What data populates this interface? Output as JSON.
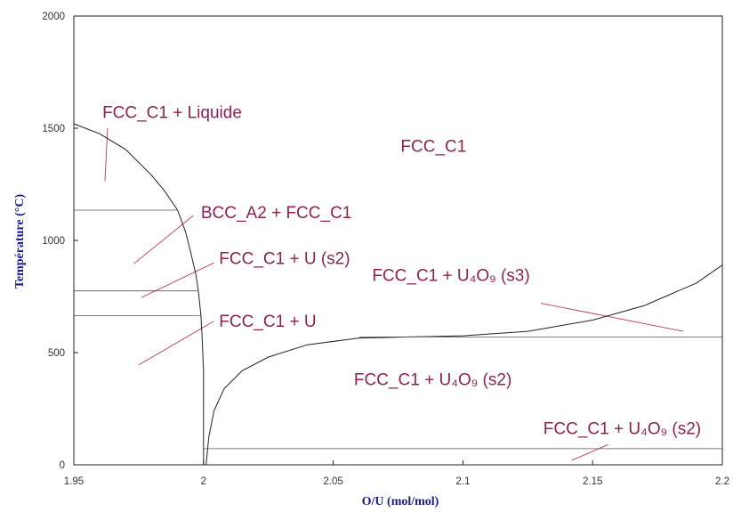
{
  "chart_data": {
    "type": "line",
    "xlabel": "O/U (mol/mol)",
    "ylabel": "Température (°C)",
    "xlim": [
      1.95,
      2.2
    ],
    "ylim": [
      0,
      2000
    ],
    "x_ticks": [
      "1.95",
      "2",
      "2.05",
      "2.1",
      "2.15",
      "2.2"
    ],
    "y_ticks": [
      "0",
      "500",
      "1000",
      "1500",
      "2000"
    ],
    "grid": false,
    "series": [
      {
        "points": [
          [
            1.95,
            1520
          ],
          [
            1.96,
            1475
          ],
          [
            1.97,
            1405
          ],
          [
            1.98,
            1290
          ],
          [
            1.985,
            1220
          ],
          [
            1.99,
            1135
          ],
          [
            1.993,
            1040
          ],
          [
            1.995,
            950
          ],
          [
            1.997,
            850
          ],
          [
            1.998,
            775
          ],
          [
            1.999,
            665
          ],
          [
            1.9995,
            560
          ],
          [
            2.0,
            420
          ],
          [
            2.0,
            200
          ],
          [
            2.0,
            0
          ]
        ]
      },
      {
        "points": [
          [
            2.001,
            0
          ],
          [
            2.002,
            120
          ],
          [
            2.004,
            240
          ],
          [
            2.008,
            340
          ],
          [
            2.015,
            420
          ],
          [
            2.025,
            480
          ],
          [
            2.04,
            535
          ],
          [
            2.06,
            565
          ],
          [
            2.1,
            575
          ],
          [
            2.125,
            595
          ],
          [
            2.15,
            645
          ],
          [
            2.17,
            710
          ],
          [
            2.19,
            810
          ],
          [
            2.2,
            890
          ]
        ]
      },
      {
        "points": [
          [
            1.95,
            1135
          ],
          [
            1.99,
            1135
          ]
        ]
      },
      {
        "points": [
          [
            1.95,
            775
          ],
          [
            1.998,
            775
          ]
        ]
      },
      {
        "points": [
          [
            1.95,
            665
          ],
          [
            1.999,
            665
          ]
        ]
      },
      {
        "points": [
          [
            2.06,
            570
          ],
          [
            2.2,
            570
          ]
        ]
      },
      {
        "points": [
          [
            2.0,
            72
          ],
          [
            2.2,
            72
          ]
        ]
      }
    ],
    "annotations": [
      {
        "text": "FCC_C1 + Liquide",
        "x": 1.961,
        "y": 1545,
        "leader": [
          [
            1.963,
            1500
          ],
          [
            1.962,
            1265
          ]
        ]
      },
      {
        "text": "FCC_C1",
        "x": 2.076,
        "y": 1395
      },
      {
        "text": "BCC_A2 + FCC_C1",
        "x": 1.999,
        "y": 1100,
        "leader": [
          [
            1.996,
            1110
          ],
          [
            1.973,
            895
          ]
        ]
      },
      {
        "text": "FCC_C1 + U (s2)",
        "x": 2.006,
        "y": 895,
        "leader": [
          [
            2.004,
            900
          ],
          [
            1.976,
            745
          ]
        ]
      },
      {
        "text": "FCC_C1 + U",
        "x": 2.006,
        "y": 615,
        "leader": [
          [
            2.004,
            640
          ],
          [
            1.975,
            445
          ]
        ]
      },
      {
        "text": "FCC_C1 + U₄O₉ (s3)",
        "x": 2.065,
        "y": 820,
        "leader": [
          [
            2.13,
            720
          ],
          [
            2.185,
            595
          ]
        ]
      },
      {
        "text": "FCC_C1 + U₄O₉ (s2)",
        "x": 2.058,
        "y": 355
      },
      {
        "text": "FCC_C1 + U₄O₉ (s2)",
        "x": 2.131,
        "y": 137,
        "leader": [
          [
            2.156,
            90
          ],
          [
            2.142,
            20
          ]
        ]
      }
    ]
  }
}
